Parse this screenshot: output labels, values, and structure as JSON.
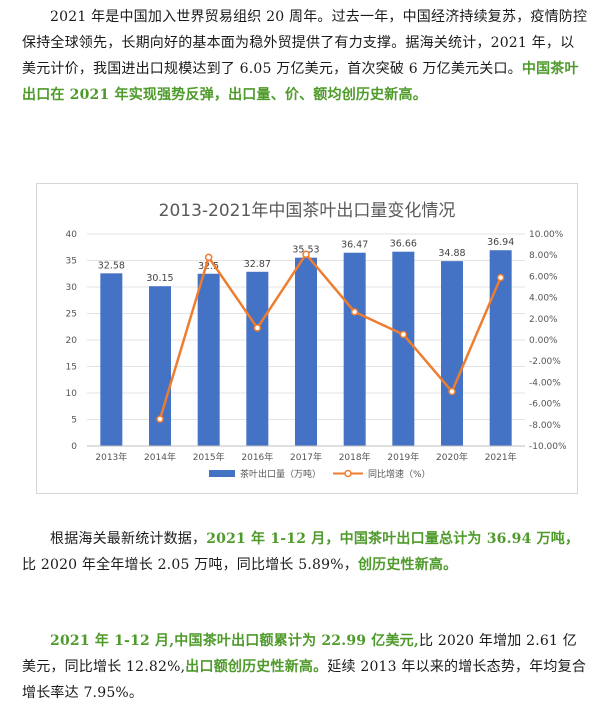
{
  "paragraphs": {
    "p1": {
      "plain": "2021 年是中国加入世界贸易组织 20 周年。过去一年，中国经济持续复苏，疫情防控保持全球领先，长期向好的基本面为稳外贸提供了有力支撑。据海关统计，2021 年，以美元计价，我国进出口规模达到了 6.05 万亿美元，首次突破 6 万亿美元关口。",
      "highlight": "中国茶叶出口在 2021 年实现强势反弹，出口量、价、额均创历史新高。"
    },
    "p2": {
      "plain1": "根据海关最新统计数据，",
      "highlight1": "2021 年 1-12 月，中国茶叶出口量总计为 36.94 万吨，",
      "plain2": "比 2020 年全年增长 2.05 万吨，同比增长 5.89%，",
      "highlight2": "创历史性新高。"
    },
    "p3": {
      "highlight1": "2021 年 1-12 月,中国茶叶出口额累计为 22.99 亿美元,",
      "plain1": "比 2020 年增加 2.61 亿美元，同比增长 12.82%,",
      "highlight2": "出口额创历史性新高。",
      "plain2": "延续 2013 年以来的增长态势，年均复合增长率达 7.95%。"
    }
  },
  "chart_data": {
    "type": "bar",
    "title": "2013-2021年中国茶叶出口量变化情况",
    "categories": [
      "2013年",
      "2014年",
      "2015年",
      "2016年",
      "2017年",
      "2018年",
      "2019年",
      "2020年",
      "2021年"
    ],
    "series": [
      {
        "name": "茶叶出口量（万吨）",
        "type": "bar",
        "axis": "left",
        "values": [
          32.58,
          30.15,
          32.5,
          32.87,
          35.53,
          36.47,
          36.66,
          34.88,
          36.94
        ],
        "labels": [
          "32.58",
          "30.15",
          "32.5",
          "32.87",
          "35.53",
          "36.47",
          "36.66",
          "34.88",
          "36.94"
        ],
        "color": "#4472c4"
      },
      {
        "name": "同比增速（%）",
        "type": "line",
        "axis": "right",
        "values": [
          null,
          -7.46,
          7.8,
          1.14,
          8.09,
          2.65,
          0.52,
          -4.86,
          5.89
        ],
        "color": "#ed7d31"
      }
    ],
    "left_axis": {
      "min": 0,
      "max": 40,
      "ticks": [
        "0",
        "5",
        "10",
        "15",
        "20",
        "25",
        "30",
        "35",
        "40"
      ]
    },
    "right_axis": {
      "min": -10,
      "max": 10,
      "ticks": [
        "-10.00%",
        "-8.00%",
        "-6.00%",
        "-4.00%",
        "-2.00%",
        "0.00%",
        "2.00%",
        "4.00%",
        "6.00%",
        "8.00%",
        "10.00%"
      ]
    },
    "grid": true,
    "legend_position": "bottom"
  }
}
